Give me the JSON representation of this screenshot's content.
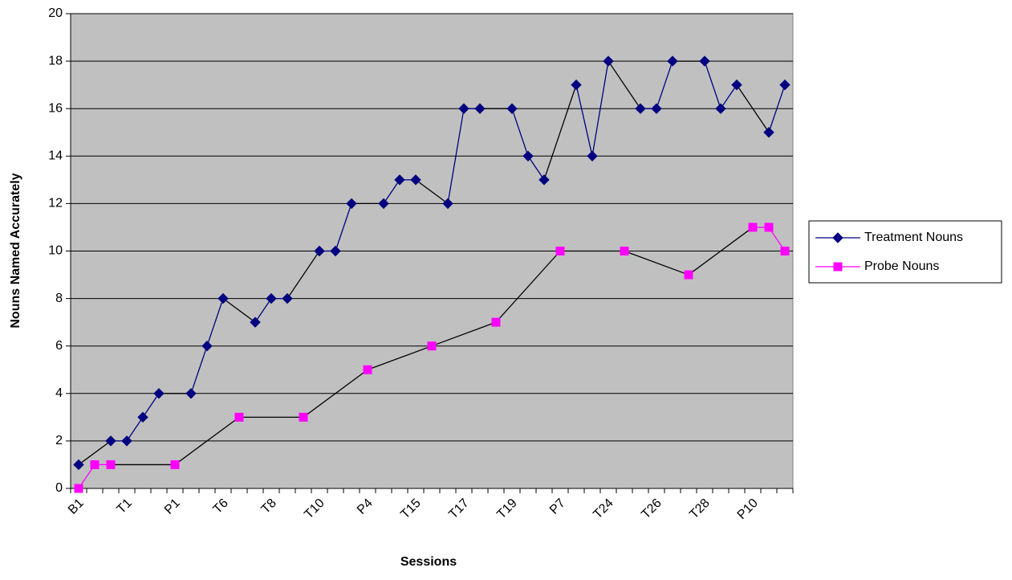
{
  "chart_data": {
    "type": "line",
    "categories": [
      "B1",
      null,
      null,
      "T1",
      null,
      null,
      "P1",
      null,
      null,
      "T6",
      null,
      null,
      "T8",
      null,
      null,
      "T10",
      null,
      null,
      "P4",
      null,
      null,
      "T15",
      null,
      null,
      "T17",
      null,
      null,
      "T19",
      null,
      null,
      "P7",
      null,
      null,
      "T24",
      null,
      null,
      "T26",
      null,
      null,
      "T28",
      null,
      null,
      "P10",
      null,
      null
    ],
    "series": [
      {
        "name": "Treatment Nouns",
        "color": "#000080",
        "marker": "diamond",
        "values": [
          1,
          null,
          2,
          2,
          3,
          4,
          null,
          4,
          6,
          8,
          null,
          7,
          8,
          8,
          null,
          10,
          10,
          12,
          null,
          12,
          13,
          13,
          null,
          12,
          16,
          16,
          null,
          16,
          14,
          13,
          null,
          17,
          14,
          18,
          null,
          16,
          16,
          18,
          null,
          18,
          16,
          17,
          null,
          15,
          17
        ]
      },
      {
        "name": "Probe Nouns",
        "color": "#ff00ff",
        "marker": "square",
        "values": [
          0,
          1,
          1,
          null,
          null,
          null,
          1,
          null,
          null,
          null,
          3,
          null,
          null,
          null,
          3,
          null,
          null,
          null,
          5,
          null,
          null,
          null,
          6,
          null,
          null,
          null,
          7,
          null,
          null,
          null,
          10,
          null,
          null,
          null,
          10,
          null,
          null,
          null,
          9,
          null,
          null,
          null,
          11,
          11,
          10
        ]
      }
    ],
    "xlabel": "Sessions",
    "ylabel": "Nouns Named Accurately",
    "ylim": [
      0,
      20
    ],
    "yticks": [
      0,
      2,
      4,
      6,
      8,
      10,
      12,
      14,
      16,
      18,
      20
    ],
    "grid": true,
    "legend": "right"
  }
}
